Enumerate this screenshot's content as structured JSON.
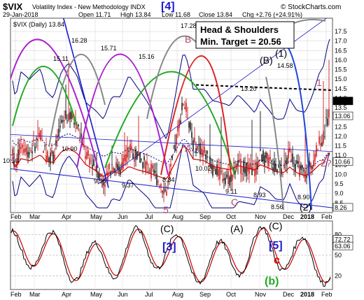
{
  "header": {
    "symbol": "$VIX",
    "name": "Volatility Index - New Methodology INDX",
    "date": "29-Jan-2018",
    "open": "Open 11.71",
    "high": "High 13.84",
    "low": "Low 11.68",
    "close": "Close 13.84",
    "chg": "Chg +2.76 (+24.91%)",
    "watermark": "© StockCharts.com",
    "legend": "$VIX (Daily) 13.84",
    "up_color": "#000000",
    "down_color": "#cc0000"
  },
  "annotation_box": {
    "line1": "Head & Shoulders",
    "line2": "Min. Target = 20.56"
  },
  "chart_data": [
    {
      "type": "candlestick",
      "x_tick_labels": [
        "Feb",
        "Mar",
        "Apr",
        "May",
        "Jun",
        "Jul",
        "Aug",
        "Sep",
        "Oct",
        "Nov",
        "Dec",
        "2018",
        "Feb"
      ],
      "y_tick_labels": [
        "8.5",
        "9.0",
        "9.5",
        "10.0",
        "10.5",
        "11.0",
        "11.5",
        "12.0",
        "12.5",
        "13.0",
        "13.5",
        "14.0",
        "14.5",
        "15.0",
        "15.5",
        "16.0",
        "16.5",
        "17.0",
        "17.5"
      ],
      "ylim": [
        8.0,
        18.2
      ],
      "axis_side": "right",
      "grid": true,
      "price_labels": [
        "10.30",
        "15.11",
        "16.28",
        "10.90",
        "15.71",
        "9.56",
        "9.37",
        "15.16",
        "8.84",
        "17.28",
        "10.02",
        "9.11",
        "13.20",
        "8.93",
        "8.56",
        "14.58",
        "8.90"
      ],
      "right_value_labels": [
        "13.84",
        "13.06",
        "10.66",
        "8.26"
      ],
      "wave_labels": [
        "[4]",
        "B",
        "(B)",
        "(1)",
        "1",
        "A",
        "C",
        "2?",
        "(2)",
        "3",
        "5"
      ],
      "colors": {
        "up": "#000000",
        "down": "#cc0000",
        "ma_red": "#cc0000",
        "ma_dotted": "#000080",
        "bands": "#000080",
        "trend": "#1a1acc",
        "cycle_green": "#22aa22",
        "cycle_purple": "#aa22cc",
        "cycle_red": "#dd2222",
        "cycle_gray": "#888888",
        "cycle_blue": "#2244dd"
      }
    },
    {
      "type": "line",
      "x_tick_labels": [
        "Feb",
        "Mar",
        "Apr",
        "May",
        "Jun",
        "Jul",
        "Aug",
        "Sep",
        "Oct",
        "Nov",
        "Dec",
        "2018",
        "Feb"
      ],
      "y_tick_labels": [
        "20",
        "50",
        "80"
      ],
      "ylim": [
        0,
        100
      ],
      "right_value_labels": [
        "72.72",
        "63.06"
      ],
      "wave_labels": [
        "(C)",
        "[3]",
        "(A)",
        "(C)",
        "[5]",
        "c",
        "(b)"
      ],
      "colors": {
        "line": "#000000",
        "signal": "#cc0000"
      }
    }
  ]
}
